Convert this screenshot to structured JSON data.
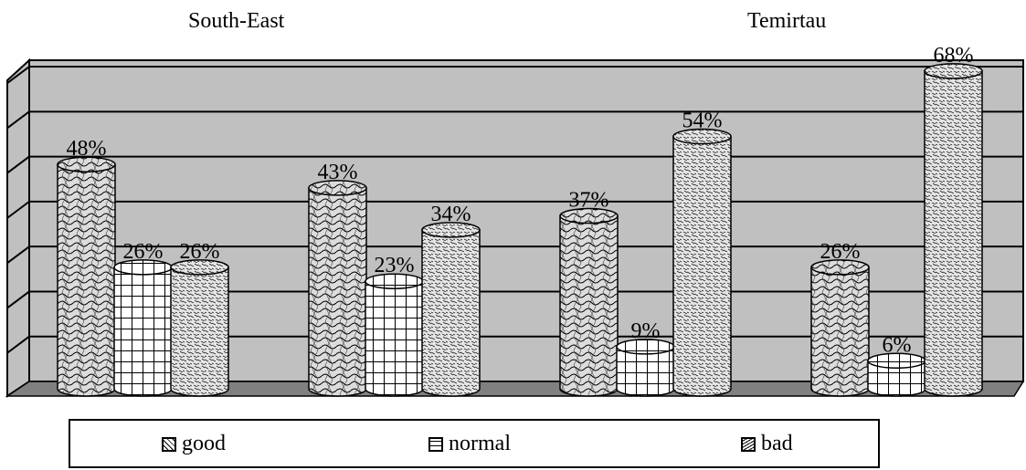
{
  "chart_data": {
    "type": "bar",
    "style": "3d-cylinder",
    "categories": [
      "1",
      "2",
      "3",
      "4"
    ],
    "category_titles": [
      "South-East",
      "",
      "",
      "Temirtau"
    ],
    "series": [
      {
        "name": "good",
        "values": [
          48,
          43,
          37,
          26
        ],
        "labels": [
          "48%",
          "43%",
          "37%",
          "26%"
        ]
      },
      {
        "name": "normal",
        "values": [
          26,
          23,
          9,
          6
        ],
        "labels": [
          "26%",
          "23%",
          "9%",
          "6%"
        ]
      },
      {
        "name": "bad",
        "values": [
          26,
          34,
          54,
          68
        ],
        "labels": [
          "26%",
          "34%",
          "54%",
          "68%"
        ]
      }
    ],
    "ylim": [
      0,
      70
    ],
    "grid": true,
    "legend_position": "bottom"
  },
  "colors": {
    "wall": "#c0c0c0",
    "floor": "#808080",
    "cylinder": "#d4d4d4",
    "outline": "#000000"
  }
}
